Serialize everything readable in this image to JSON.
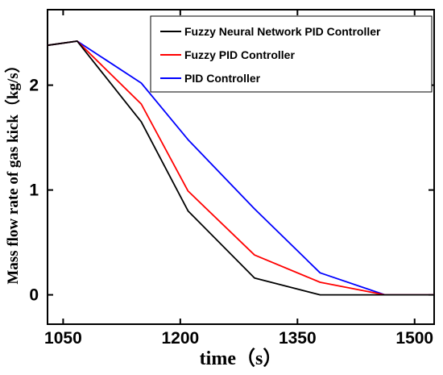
{
  "chart_data": {
    "type": "line",
    "xlabel": "time（s）",
    "ylabel": "Mass flow rate of gas kick（kg/s）",
    "xlim": [
      1030,
      1525
    ],
    "ylim": [
      -0.28,
      2.72
    ],
    "x_ticks": [
      1050,
      1200,
      1350,
      1500
    ],
    "y_ticks": [
      0,
      1,
      2
    ],
    "grid": false,
    "legend_position": "top-right",
    "series": [
      {
        "name": "Fuzzy Neural Network PID Controller",
        "color": "#000000",
        "x": [
          1030,
          1068,
          1150,
          1210,
          1295,
          1379,
          1462,
          1525
        ],
        "y": [
          2.38,
          2.42,
          1.65,
          0.8,
          0.16,
          0.0,
          0.0,
          0.0
        ]
      },
      {
        "name": "Fuzzy PID Controller",
        "color": "#ff0000",
        "x": [
          1030,
          1068,
          1150,
          1210,
          1295,
          1379,
          1462,
          1525
        ],
        "y": [
          2.38,
          2.42,
          1.82,
          0.99,
          0.38,
          0.12,
          0.0,
          0.0
        ]
      },
      {
        "name": "PID Controller",
        "color": "#0000ff",
        "x": [
          1030,
          1068,
          1150,
          1210,
          1295,
          1379,
          1462,
          1525
        ],
        "y": [
          2.38,
          2.42,
          2.02,
          1.48,
          0.82,
          0.21,
          0.0,
          0.0
        ]
      }
    ]
  }
}
